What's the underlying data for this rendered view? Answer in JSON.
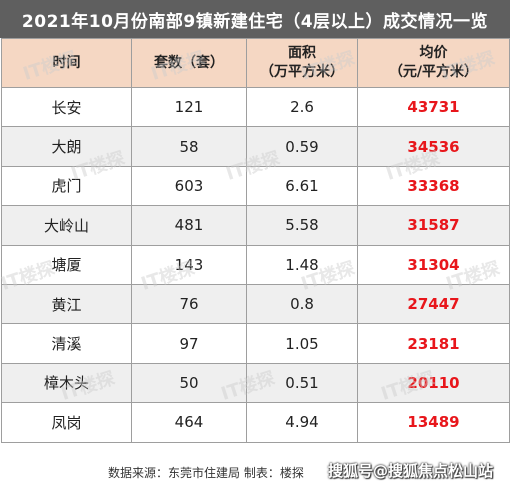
{
  "title": "2021年10月份南部9镇新建住宅（4层以上）成交情况一览",
  "headers": {
    "time": "时间",
    "units": [
      "套数（套）"
    ],
    "area": [
      "面积",
      "（万平方米）"
    ],
    "price": [
      "均价",
      "（元/平方米）"
    ]
  },
  "rows": [
    {
      "district": "长安",
      "units": "121",
      "area": "2.6",
      "price": "43731"
    },
    {
      "district": "大朗",
      "units": "58",
      "area": "0.59",
      "price": "34536"
    },
    {
      "district": "虎门",
      "units": "603",
      "area": "6.61",
      "price": "33368"
    },
    {
      "district": "大岭山",
      "units": "481",
      "area": "5.58",
      "price": "31587"
    },
    {
      "district": "塘厦",
      "units": "143",
      "area": "1.48",
      "price": "31304"
    },
    {
      "district": "黄江",
      "units": "76",
      "area": "0.8",
      "price": "27447"
    },
    {
      "district": "清溪",
      "units": "97",
      "area": "1.05",
      "price": "23181"
    },
    {
      "district": "樟木头",
      "units": "50",
      "area": "0.51",
      "price": "20110"
    },
    {
      "district": "凤岗",
      "units": "464",
      "area": "4.94",
      "price": "13489"
    }
  ],
  "footer": {
    "source": "数据来源：东莞市住建局 制表：楼探",
    "platform": "搜狐号@搜狐焦点松山站"
  },
  "watermark": "IT楼探",
  "colors": {
    "title_bg": "#5f5f5f",
    "header_bg": "#f5d7c3",
    "price_text": "#e8161b",
    "stripe_bg": "#efefef"
  }
}
